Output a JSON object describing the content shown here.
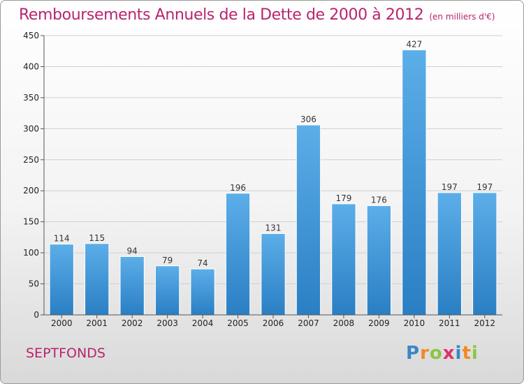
{
  "chart_data": {
    "type": "bar",
    "title": "Remboursements Annuels de la Dette de 2000 à 2012",
    "subtitle": "(en milliers d'€)",
    "categories": [
      "2000",
      "2001",
      "2002",
      "2003",
      "2004",
      "2005",
      "2006",
      "2007",
      "2008",
      "2009",
      "2010",
      "2011",
      "2012"
    ],
    "values": [
      114,
      115,
      94,
      79,
      74,
      196,
      131,
      306,
      179,
      176,
      427,
      197,
      197
    ],
    "ylim": [
      0,
      450
    ],
    "yticks": [
      0,
      50,
      100,
      150,
      200,
      250,
      300,
      350,
      400,
      450
    ],
    "grid": true,
    "bar_color": "#3d93d9"
  },
  "commune": "SEPTFONDS",
  "logo": {
    "text": "Proxiti",
    "letters": [
      {
        "ch": "P",
        "color": "#3a86c8"
      },
      {
        "ch": "r",
        "color": "#f08a24"
      },
      {
        "ch": "o",
        "color": "#8cc63f"
      },
      {
        "ch": "x",
        "color": "#e2306c"
      },
      {
        "ch": "i",
        "color": "#3a86c8"
      },
      {
        "ch": "t",
        "color": "#f08a24"
      },
      {
        "ch": "i",
        "color": "#8cc63f"
      }
    ]
  }
}
